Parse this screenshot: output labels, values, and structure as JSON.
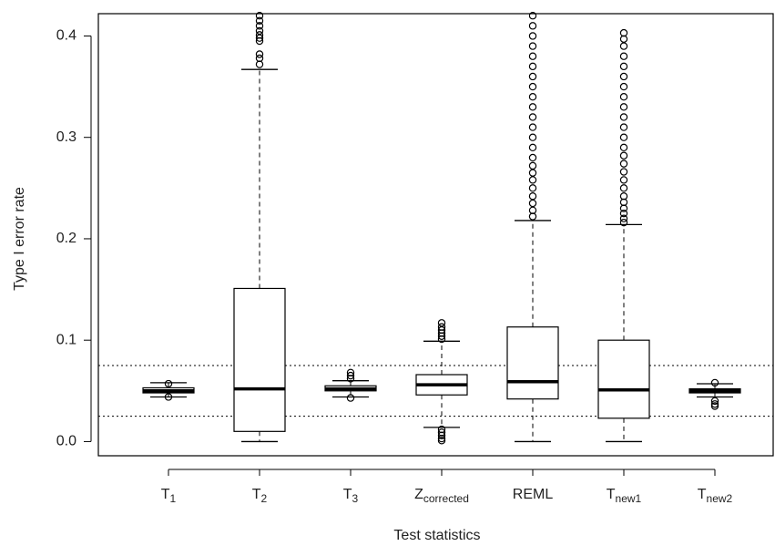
{
  "chart_data": {
    "type": "boxplot",
    "x_label": "Test statistics",
    "y_label": "Type I error rate",
    "categories": [
      {
        "base": "T",
        "sub": "1"
      },
      {
        "base": "T",
        "sub": "2"
      },
      {
        "base": "T",
        "sub": "3"
      },
      {
        "base": "Z",
        "sub": "corrected"
      },
      {
        "base": "REML"
      },
      {
        "base": "T",
        "sub": "new1"
      },
      {
        "base": "T",
        "sub": "new2"
      }
    ],
    "boxes": [
      {
        "low": 0.044,
        "q1": 0.048,
        "median": 0.05,
        "q3": 0.053,
        "high": 0.058,
        "outliers": [
          0.057,
          0.044
        ]
      },
      {
        "low": 0.0,
        "q1": 0.01,
        "median": 0.052,
        "q3": 0.151,
        "high": 0.367,
        "outliers": [
          0.372,
          0.378,
          0.382,
          0.395,
          0.398,
          0.401,
          0.405,
          0.41,
          0.415,
          0.42
        ]
      },
      {
        "low": 0.044,
        "q1": 0.05,
        "median": 0.052,
        "q3": 0.055,
        "high": 0.06,
        "outliers": [
          0.062,
          0.065,
          0.068,
          0.043
        ]
      },
      {
        "low": 0.014,
        "q1": 0.046,
        "median": 0.056,
        "q3": 0.066,
        "high": 0.099,
        "outliers": [
          0.101,
          0.104,
          0.107,
          0.11,
          0.113,
          0.117,
          0.012,
          0.009,
          0.006,
          0.003,
          0.001
        ]
      },
      {
        "low": 0.0,
        "q1": 0.042,
        "median": 0.059,
        "q3": 0.113,
        "high": 0.218,
        "outliers": [
          0.222,
          0.228,
          0.235,
          0.242,
          0.25,
          0.258,
          0.265,
          0.272,
          0.28,
          0.29,
          0.3,
          0.31,
          0.32,
          0.33,
          0.34,
          0.35,
          0.36,
          0.37,
          0.38,
          0.39,
          0.4,
          0.41,
          0.42
        ]
      },
      {
        "low": 0.0,
        "q1": 0.023,
        "median": 0.051,
        "q3": 0.1,
        "high": 0.214,
        "outliers": [
          0.216,
          0.22,
          0.225,
          0.23,
          0.236,
          0.242,
          0.25,
          0.258,
          0.266,
          0.274,
          0.282,
          0.29,
          0.3,
          0.31,
          0.32,
          0.33,
          0.34,
          0.35,
          0.36,
          0.37,
          0.38,
          0.39,
          0.397,
          0.403
        ]
      },
      {
        "low": 0.044,
        "q1": 0.048,
        "median": 0.05,
        "q3": 0.052,
        "high": 0.057,
        "outliers": [
          0.058,
          0.04,
          0.037,
          0.035
        ]
      }
    ],
    "reference_lines": [
      0.025,
      0.075
    ],
    "ylim": [
      -0.014,
      0.422
    ],
    "yticks": [
      {
        "value": 0,
        "label": "0.0"
      },
      0.1,
      0.2,
      0.3,
      0.4
    ],
    "color": "#000000"
  }
}
